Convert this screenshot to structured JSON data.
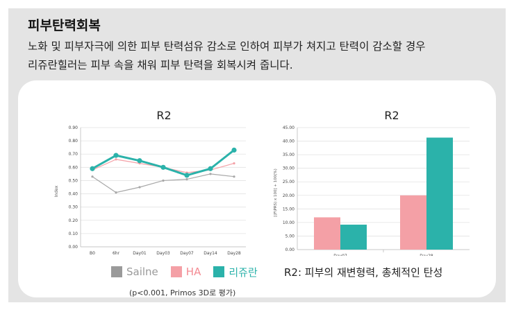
{
  "title": "피부탄력회복",
  "description_line1": "노화 및 피부자극에 의한 피부 탄력섬유 감소로 인하여 피부가 쳐지고 탄력이 감소할 경우",
  "description_line2": "리쥬란힐러는 피부 속을 채워 피부 탄력을 회복시켜 줍니다.",
  "legend": [
    {
      "label": "Sailne",
      "color": "#9a9a9a"
    },
    {
      "label": "HA",
      "color": "#f4a0a6"
    },
    {
      "label": "리쥬란",
      "color": "#2bb2aa"
    }
  ],
  "footnote": "(p<0.001, Primos 3D로 평가)",
  "r2_note": "R2: 피부의 재변형력, 총체적인 탄성",
  "chart_data": [
    {
      "type": "line",
      "title": "R2",
      "ylabel": "Index",
      "categories": [
        "B0",
        "6hr",
        "Day01",
        "Day03",
        "Day07",
        "Day14",
        "Day28"
      ],
      "ylim": [
        0.0,
        0.9
      ],
      "yticks": [
        "0.00",
        "0.10",
        "0.20",
        "0.30",
        "0.40",
        "0.50",
        "0.60",
        "0.70",
        "0.80",
        "0.90"
      ],
      "grid": true,
      "series": [
        {
          "name": "Sailne",
          "color": "#a8a8a8",
          "values": [
            0.53,
            0.41,
            0.45,
            0.5,
            0.51,
            0.55,
            0.53
          ]
        },
        {
          "name": "HA",
          "color": "#f4a0a6",
          "values": [
            0.58,
            0.66,
            0.63,
            0.6,
            0.56,
            0.58,
            0.63
          ]
        },
        {
          "name": "리쥬란",
          "color": "#2bb2aa",
          "values": [
            0.59,
            0.69,
            0.65,
            0.6,
            0.54,
            0.59,
            0.73
          ]
        }
      ]
    },
    {
      "type": "bar",
      "title": "R2",
      "ylabel": "[(F\\PRS) x 100] + 100(%)",
      "categories": [
        "Day07",
        "Day28"
      ],
      "ylim": [
        0.0,
        45.0
      ],
      "yticks": [
        "0.00",
        "5.00",
        "10.00",
        "15.00",
        "20.00",
        "25.00",
        "30.00",
        "35.00",
        "40.00",
        "45.00"
      ],
      "grid": true,
      "series": [
        {
          "name": "HA",
          "color": "#f4a0a6",
          "values": [
            11.9,
            20.0
          ]
        },
        {
          "name": "리쥬란",
          "color": "#2bb2aa",
          "values": [
            9.2,
            41.3
          ]
        }
      ]
    }
  ]
}
